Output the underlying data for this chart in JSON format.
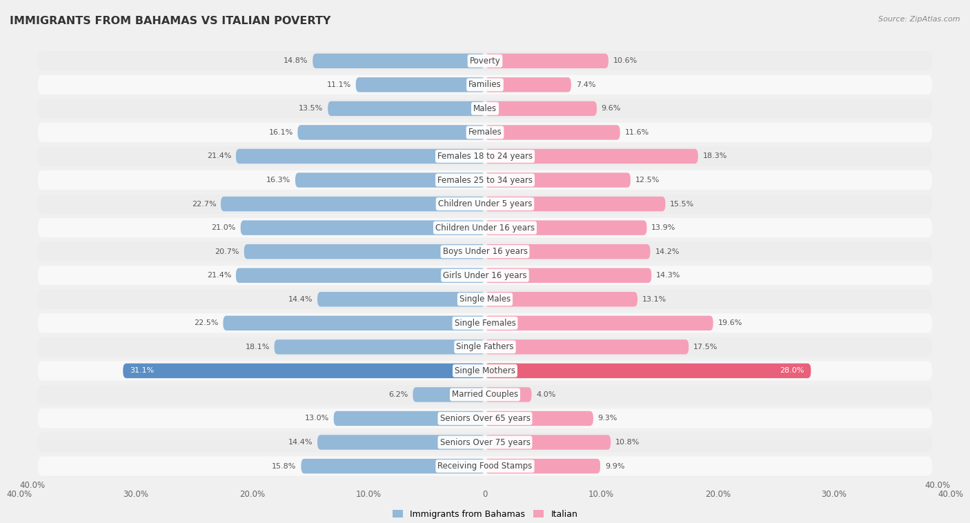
{
  "title": "IMMIGRANTS FROM BAHAMAS VS ITALIAN POVERTY",
  "source": "Source: ZipAtlas.com",
  "categories": [
    "Poverty",
    "Families",
    "Males",
    "Females",
    "Females 18 to 24 years",
    "Females 25 to 34 years",
    "Children Under 5 years",
    "Children Under 16 years",
    "Boys Under 16 years",
    "Girls Under 16 years",
    "Single Males",
    "Single Females",
    "Single Fathers",
    "Single Mothers",
    "Married Couples",
    "Seniors Over 65 years",
    "Seniors Over 75 years",
    "Receiving Food Stamps"
  ],
  "bahamas_values": [
    14.8,
    11.1,
    13.5,
    16.1,
    21.4,
    16.3,
    22.7,
    21.0,
    20.7,
    21.4,
    14.4,
    22.5,
    18.1,
    31.1,
    6.2,
    13.0,
    14.4,
    15.8
  ],
  "italian_values": [
    10.6,
    7.4,
    9.6,
    11.6,
    18.3,
    12.5,
    15.5,
    13.9,
    14.2,
    14.3,
    13.1,
    19.6,
    17.5,
    28.0,
    4.0,
    9.3,
    10.8,
    9.9
  ],
  "bahamas_color": "#93b8d8",
  "italian_color": "#f5a0b8",
  "bahamas_highlight_color": "#5a8ec4",
  "italian_highlight_color": "#e8607a",
  "row_color_even": "#ededee",
  "row_color_odd": "#f8f8f8",
  "background_color": "#f0f0f0",
  "xlim": 40.0,
  "bar_height": 0.62,
  "highlight_indices": [
    13
  ],
  "legend_labels": [
    "Immigrants from Bahamas",
    "Italian"
  ],
  "title_fontsize": 11.5,
  "label_fontsize": 8.5,
  "value_fontsize": 8.0,
  "axis_fontsize": 8.5
}
